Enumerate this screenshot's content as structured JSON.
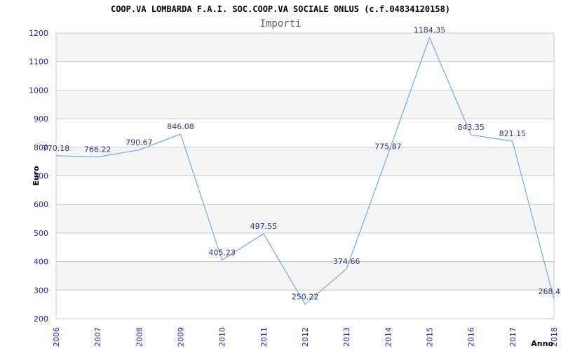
{
  "chart_data": {
    "type": "line",
    "title": "COOP.VA LOMBARDA F.A.I. SOC.COOP.VA SOCIALE ONLUS (c.f.04834120158)",
    "subtitle": "Importi",
    "xlabel": "Anno",
    "ylabel": "Euro",
    "categories": [
      "2006",
      "2007",
      "2008",
      "2009",
      "2010",
      "2011",
      "2012",
      "2013",
      "2014",
      "2015",
      "2016",
      "2017",
      "2018"
    ],
    "values": [
      770.18,
      766.22,
      790.67,
      846.08,
      405.23,
      497.55,
      250.22,
      374.66,
      775.87,
      1184.35,
      843.35,
      821.15,
      268.4
    ],
    "point_labels": [
      "770.18",
      "766.22",
      "790.67",
      "846.08",
      "405.23",
      "497.55",
      "250.22",
      "374.66",
      "775.87",
      "1184.35",
      "843.35",
      "821.15",
      "268.4"
    ],
    "ylim": [
      200,
      1200
    ],
    "ytick_step": 100,
    "ytick_labels": [
      "200",
      "300",
      "400",
      "500",
      "600",
      "700",
      "800",
      "900",
      "1000",
      "1100",
      "1200"
    ],
    "grid": "horizontal-only",
    "legend": "none",
    "plot_bands": "alternating gray/white 100-unit horizontal bands, gray at top"
  },
  "colors": {
    "line": "#7fafe0",
    "point_label": "#343488",
    "tick_label": "#2222cc",
    "axis_title": "#000000",
    "title": "#000000",
    "subtitle": "#606060",
    "band": "#f5f5f5",
    "gridline": "#cccccc",
    "plot_border": "#cccccc",
    "background": "#ffffff"
  }
}
